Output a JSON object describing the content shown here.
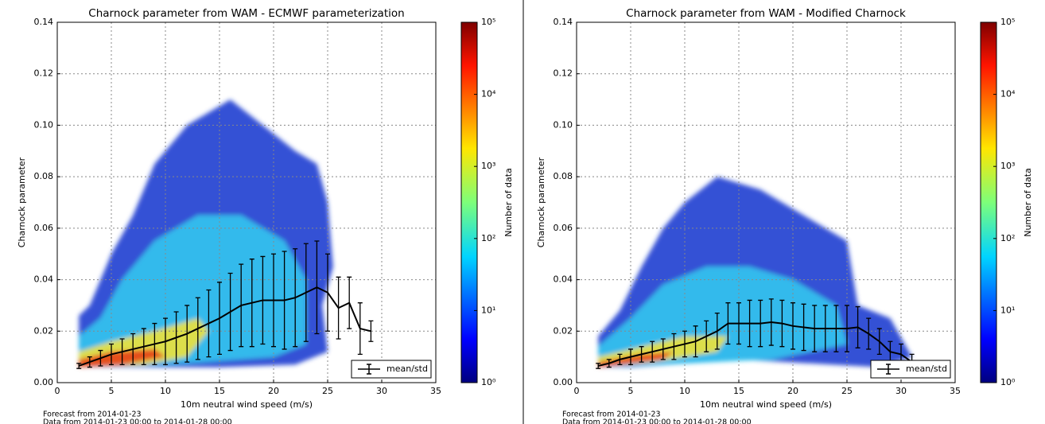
{
  "chart_data": [
    {
      "type": "errorbar",
      "title": "Charnock parameter from WAM - ECMWF parameterization",
      "xlabel": "10m neutral wind speed (m/s)",
      "ylabel": "Charnock parameter",
      "x": [
        2,
        3,
        4,
        5,
        6,
        7,
        8,
        9,
        10,
        11,
        12,
        13,
        14,
        15,
        16,
        17,
        18,
        19,
        20,
        21,
        22,
        23,
        24,
        25,
        26,
        27,
        28,
        29
      ],
      "series": [
        {
          "name": "mean/std",
          "color": "#000000",
          "values": [
            0.0065,
            0.008,
            0.0095,
            0.011,
            0.012,
            0.013,
            0.014,
            0.015,
            0.016,
            0.0175,
            0.019,
            0.021,
            0.023,
            0.025,
            0.0275,
            0.03,
            0.031,
            0.032,
            0.032,
            0.032,
            0.033,
            0.035,
            0.037,
            0.035,
            0.029,
            0.031,
            0.021,
            0.02
          ],
          "errors": [
            0.001,
            0.002,
            0.003,
            0.004,
            0.005,
            0.006,
            0.007,
            0.008,
            0.009,
            0.01,
            0.011,
            0.012,
            0.013,
            0.014,
            0.015,
            0.016,
            0.017,
            0.017,
            0.018,
            0.019,
            0.019,
            0.019,
            0.018,
            0.015,
            0.012,
            0.01,
            0.01,
            0.004
          ]
        }
      ],
      "xlim": [
        0,
        35
      ],
      "xticks": [
        0,
        5,
        10,
        15,
        20,
        25,
        30,
        35
      ],
      "ylim": [
        0,
        0.14
      ],
      "yticks": [
        {
          "value": 0,
          "label": "0.00"
        },
        {
          "value": 0.02,
          "label": "0.02"
        },
        {
          "value": 0.04,
          "label": "0.04"
        },
        {
          "value": 0.06,
          "label": "0.06"
        },
        {
          "value": 0.08,
          "label": "0.08"
        },
        {
          "value": 0.1,
          "label": "0.10"
        },
        {
          "value": 0.12,
          "label": "0.12"
        },
        {
          "value": 0.14,
          "label": "0.14"
        }
      ],
      "grid": true,
      "legend": "lower right",
      "colorbar": {
        "label": "Number of data",
        "log": true,
        "lim": [
          1,
          100000
        ],
        "ticks": [
          {
            "value": 1,
            "label": "10⁰"
          },
          {
            "value": 10,
            "label": "10¹"
          },
          {
            "value": 100,
            "label": "10²"
          },
          {
            "value": 1000,
            "label": "10³"
          },
          {
            "value": 10000,
            "label": "10⁴"
          },
          {
            "value": 100000,
            "label": "10⁵"
          }
        ]
      },
      "notes": [
        "Forecast from 2014-01-23",
        "Data from 2014-01-23 00:00 to 2014-01-28 00:00"
      ]
    },
    {
      "type": "errorbar",
      "title": "Charnock parameter from WAM - Modified Charnock",
      "xlabel": "10m neutral wind speed (m/s)",
      "ylabel": "Charnock parameter",
      "x": [
        2,
        3,
        4,
        5,
        6,
        7,
        8,
        9,
        10,
        11,
        12,
        13,
        14,
        15,
        16,
        17,
        18,
        19,
        20,
        21,
        22,
        23,
        24,
        25,
        26,
        27,
        28,
        29,
        30,
        31
      ],
      "series": [
        {
          "name": "mean/std",
          "color": "#000000",
          "values": [
            0.0065,
            0.0075,
            0.009,
            0.01,
            0.011,
            0.012,
            0.013,
            0.014,
            0.015,
            0.016,
            0.018,
            0.02,
            0.023,
            0.023,
            0.023,
            0.023,
            0.0235,
            0.023,
            0.022,
            0.0215,
            0.021,
            0.021,
            0.021,
            0.021,
            0.0215,
            0.019,
            0.016,
            0.012,
            0.011,
            0.008
          ],
          "errors": [
            0.001,
            0.0015,
            0.002,
            0.003,
            0.003,
            0.004,
            0.004,
            0.005,
            0.005,
            0.006,
            0.006,
            0.007,
            0.008,
            0.008,
            0.009,
            0.009,
            0.009,
            0.009,
            0.009,
            0.009,
            0.009,
            0.009,
            0.009,
            0.009,
            0.008,
            0.006,
            0.005,
            0.004,
            0.004,
            0.003
          ]
        }
      ],
      "xlim": [
        0,
        35
      ],
      "xticks": [
        0,
        5,
        10,
        15,
        20,
        25,
        30,
        35
      ],
      "ylim": [
        0,
        0.14
      ],
      "yticks": [
        {
          "value": 0,
          "label": "0.00"
        },
        {
          "value": 0.02,
          "label": "0.02"
        },
        {
          "value": 0.04,
          "label": "0.04"
        },
        {
          "value": 0.06,
          "label": "0.06"
        },
        {
          "value": 0.08,
          "label": "0.08"
        },
        {
          "value": 0.1,
          "label": "0.10"
        },
        {
          "value": 0.12,
          "label": "0.12"
        },
        {
          "value": 0.14,
          "label": "0.14"
        }
      ],
      "grid": true,
      "legend": "lower right",
      "colorbar": {
        "label": "Number of data",
        "log": true,
        "lim": [
          1,
          100000
        ],
        "ticks": [
          {
            "value": 1,
            "label": "10⁰"
          },
          {
            "value": 10,
            "label": "10¹"
          },
          {
            "value": 100,
            "label": "10²"
          },
          {
            "value": 1000,
            "label": "10³"
          },
          {
            "value": 10000,
            "label": "10⁴"
          },
          {
            "value": 100000,
            "label": "10⁵"
          }
        ]
      },
      "notes": [
        "Forecast from 2014-01-23",
        "Data from 2014-01-23 00:00 to 2014-01-28 00:00"
      ]
    }
  ]
}
